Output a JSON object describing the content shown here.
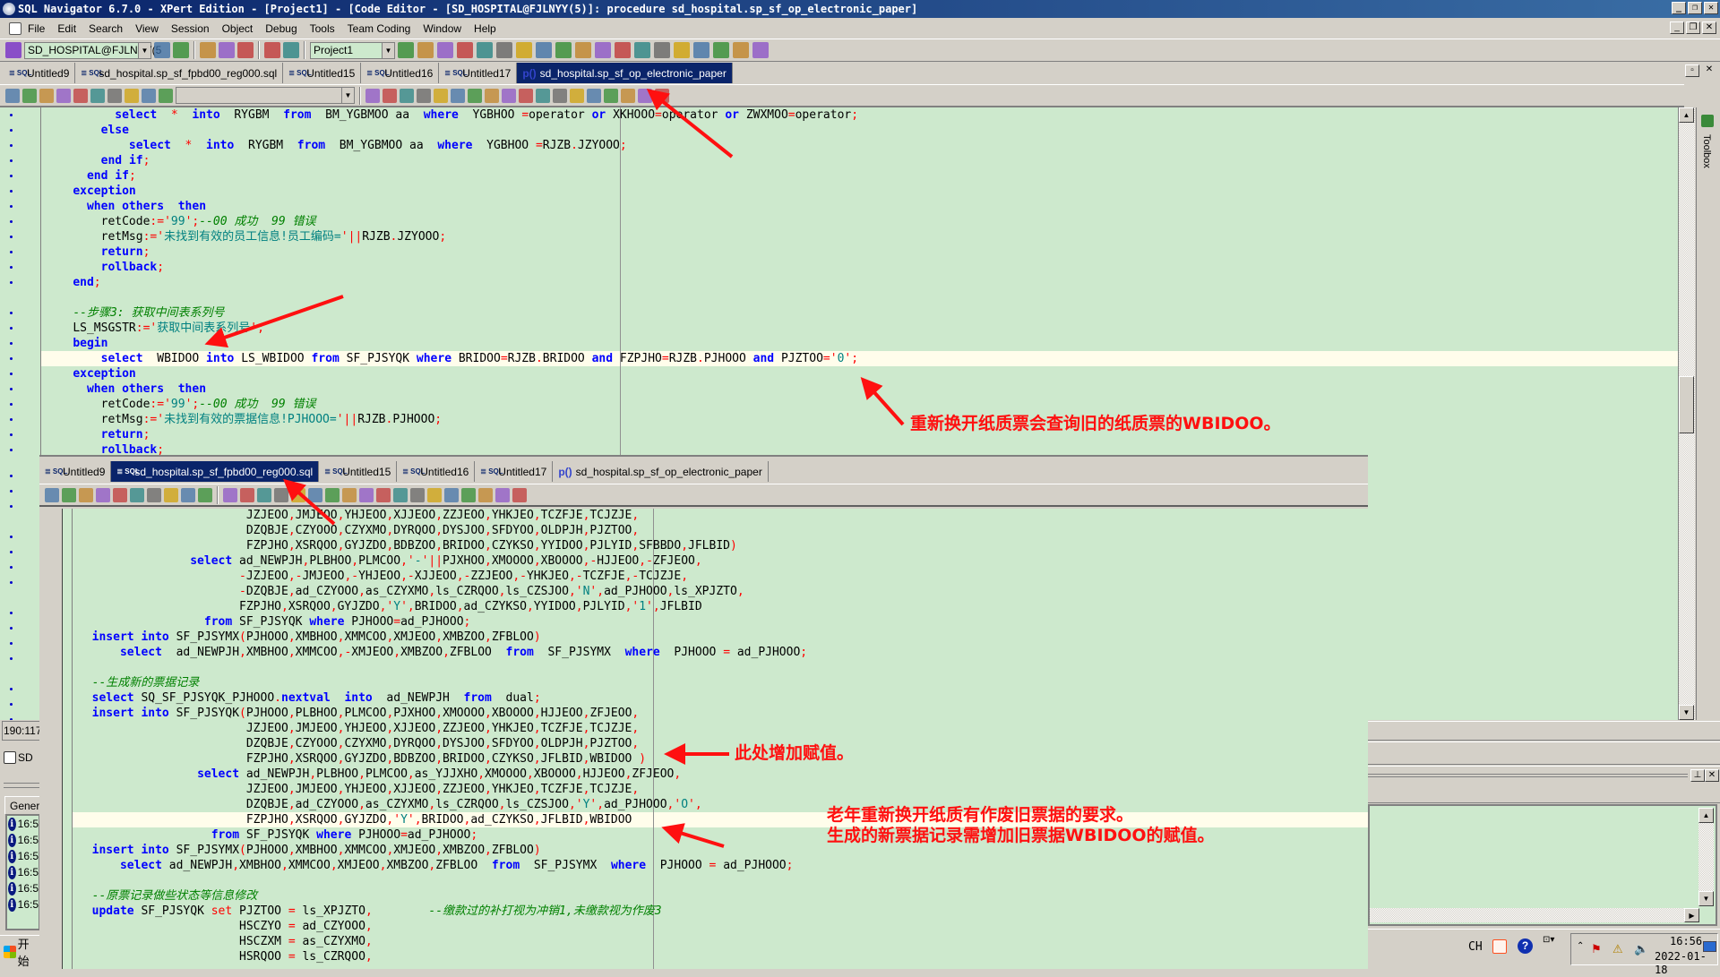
{
  "window": {
    "title": "SQL Navigator 6.7.0 - XPert Edition - [Project1] - [Code Editor - [SD_HOSPITAL@FJLNYY(5)]: procedure sd_hospital.sp_sf_op_electronic_paper]"
  },
  "menu": [
    "File",
    "Edit",
    "Search",
    "View",
    "Session",
    "Object",
    "Debug",
    "Tools",
    "Team Coding",
    "Window",
    "Help"
  ],
  "toolbar": {
    "connection": "SD_HOSPITAL@FJLNYY(5",
    "project": "Project1",
    "icons_left": [
      "session-icon",
      "web-icon"
    ],
    "icons_mid": [
      "stop-icon",
      "pause-icon",
      "cancel-icon"
    ],
    "icons_right": [
      "commit-icon",
      "rollback-icon"
    ],
    "icons_project": [
      "project-manager-icon",
      "db-explorer-icon",
      "code-editor-icon",
      "sql-icon",
      "tree-icon",
      "schema-icon",
      "hierarchy-icon",
      "outline-icon",
      "run-icon",
      "coffee-icon",
      "gear-icon",
      "counter-icon",
      "cut-icon",
      "tool-icon",
      "database-icon",
      "tuning-icon",
      "arrow-icon",
      "help-icon",
      "filter-icon"
    ]
  },
  "tabs": [
    {
      "label": "Untitled9",
      "type": "sql"
    },
    {
      "label": "sd_hospital.sp_sf_fpbd00_reg000.sql",
      "type": "sql"
    },
    {
      "label": "Untitled15",
      "type": "sql"
    },
    {
      "label": "Untitled16",
      "type": "sql"
    },
    {
      "label": "Untitled17",
      "type": "sql"
    },
    {
      "label": "sd_hospital.sp_sf_op_electronic_paper",
      "type": "proc"
    }
  ],
  "top_editor": {
    "active_tab": 5,
    "highlight_line": 16,
    "lines": [
      "          select  *  into  RYGBM  from  BM_YGBMOO aa  where  YGBHOO =operator or XKHOOO=operator or ZWXMOO=operator;",
      "        else",
      "            select  *  into  RYGBM  from  BM_YGBMOO aa  where  YGBHOO =RJZB.JZYOOO;",
      "        end if;",
      "      end if;",
      "    exception",
      "      when others  then",
      "        retCode:='99';--00 成功  99 错误",
      "        retMsg:='未找到有效的员工信息!员工编码='||RJZB.JZYOOO;",
      "        return;",
      "        rollback;",
      "    end;",
      "",
      "    --步骤3: 获取中间表系列号",
      "    LS_MSGSTR:='获取中间表系列号';",
      "    begin",
      "        select  WBIDOO into LS_WBIDOO from SF_PJSYQK where BRIDOO=RJZB.BRIDOO and FZPJHO=RJZB.PJHOOO and PJZTOO='0';",
      "    exception",
      "      when others  then",
      "        retCode:='99';--00 成功  99 错误",
      "        retMsg:='未找到有效的票据信息!PJHOOO='||RJZB.PJHOOO;",
      "        return;",
      "        rollback;"
    ]
  },
  "bottom_editor": {
    "active_tab": 1,
    "highlight_line": 20,
    "lines": [
      "                        JZJEOO,JMJEOO,YHJEOO,XJJEOO,ZZJEOO,YHKJEO,TCZFJE,TCJZJE,",
      "                        DZQBJE,CZYOOO,CZYXMO,DYRQOO,DYSJOO,SFDYOO,OLDPJH,PJZTOO,",
      "                        FZPJHO,XSRQOO,GYJZDO,BDBZOO,BRIDOO,CZYKSO,YYIDOO,PJLYID,SFBBDO,JFLBID)",
      "                select ad_NEWPJH,PLBHOO,PLMCOO,'-'||PJXHOO,XMOOOO,XBOOOO,-HJJEOO,-ZFJEOO,",
      "                       -JZJEOO,-JMJEOO,-YHJEOO,-XJJEOO,-ZZJEOO,-YHKJEO,-TCZFJE,-TCJZJE,",
      "                       -DZQBJE,ad_CZYOOO,as_CZYXMO,ls_CZRQOO,ls_CZSJOO,'N',ad_PJHOOO,ls_XPJZTO,",
      "                       FZPJHO,XSRQOO,GYJZDO,'Y',BRIDOO,ad_CZYKSO,YYIDOO,PJLYID,'1',JFLBID",
      "                  from SF_PJSYQK where PJHOOO=ad_PJHOOO;",
      "  insert into SF_PJSYMX(PJHOOO,XMBHOO,XMMCOO,XMJEOO,XMBZOO,ZFBLOO)",
      "      select  ad_NEWPJH,XMBHOO,XMMCOO,-XMJEOO,XMBZOO,ZFBLOO  from  SF_PJSYMX  where  PJHOOO = ad_PJHOOO;",
      "",
      "  --生成新的票据记录",
      "  select SQ_SF_PJSYQK_PJHOOO.nextval  into  ad_NEWPJH  from  dual;",
      "  insert into SF_PJSYQK(PJHOOO,PLBHOO,PLMCOO,PJXHOO,XMOOOO,XBOOOO,HJJEOO,ZFJEOO,",
      "                        JZJEOO,JMJEOO,YHJEOO,XJJEOO,ZZJEOO,YHKJEO,TCZFJE,TCJZJE,",
      "                        DZQBJE,CZYOOO,CZYXMO,DYRQOO,DYSJOO,SFDYOO,OLDPJH,PJZTOO,",
      "                        FZPJHO,XSRQOO,GYJZDO,BDBZOO,BRIDOO,CZYKSO,JFLBID,WBIDOO )",
      "                 select ad_NEWPJH,PLBHOO,PLMCOO,as_YJJXHO,XMOOOO,XBOOOO,HJJEOO,ZFJEOO,",
      "                        JZJEOO,JMJEOO,YHJEOO,XJJEOO,ZZJEOO,YHKJEO,TCZFJE,TCJZJE,",
      "                        DZQBJE,ad_CZYOOO,as_CZYXMO,ls_CZRQOO,ls_CZSJOO,'Y',ad_PJHOOO,'O',",
      "                        FZPJHO,XSRQOO,GYJZDO,'Y',BRIDOO,ad_CZYKSO,JFLBID,WBIDOO",
      "                   from SF_PJSYQK where PJHOOO=ad_PJHOOO;",
      "  insert into SF_PJSYMX(PJHOOO,XMBHOO,XMMCOO,XMJEOO,XMBZOO,ZFBLOO)",
      "      select ad_NEWPJH,XMBHOO,XMMCOO,XMJEOO,XMBZOO,ZFBLOO  from  SF_PJSYMX  where  PJHOOO = ad_PJHOOO;",
      "",
      "  --原票记录做些状态等信息修改",
      "  update SF_PJSYQK set PJZTOO = ls_XPJZTO,        --缴款过的补打视为冲销1,未缴款视为作废3",
      "                       HSCZYO = ad_CZYOOO,",
      "                       HSCZXM = as_CZYXMO,",
      "                       HSRQOO = ls_CZRQOO,"
    ]
  },
  "annotations": {
    "top": "重新换开纸质票会查询旧的纸质票的WBIDOO。",
    "middle": "此处增加赋值。",
    "bottom_line1": "老年重新换开纸质有作废旧票据的要求。",
    "bottom_line2": "生成的新票据记录需增加旧票据WBIDOO的赋值。",
    "color": "#ff1010"
  },
  "left_panel": {
    "position": "190:117",
    "session": "SD",
    "tab": "Genera",
    "log_times": [
      "16:5",
      "16:5",
      "16:5",
      "16:5",
      "16:5",
      "16:5"
    ]
  },
  "side_toolbox": "Toolbox",
  "taskbar": {
    "start": "开始",
    "ime": "CH",
    "time": "16:56",
    "date": "2022-01-18"
  },
  "colors": {
    "editor_bg": "#cde9cd",
    "keyword": "#0000ff",
    "string": "#008080",
    "comment": "#008000",
    "punct": "#ff0000",
    "active_tab": "#0a246a",
    "current_line": "#fffdeb"
  }
}
